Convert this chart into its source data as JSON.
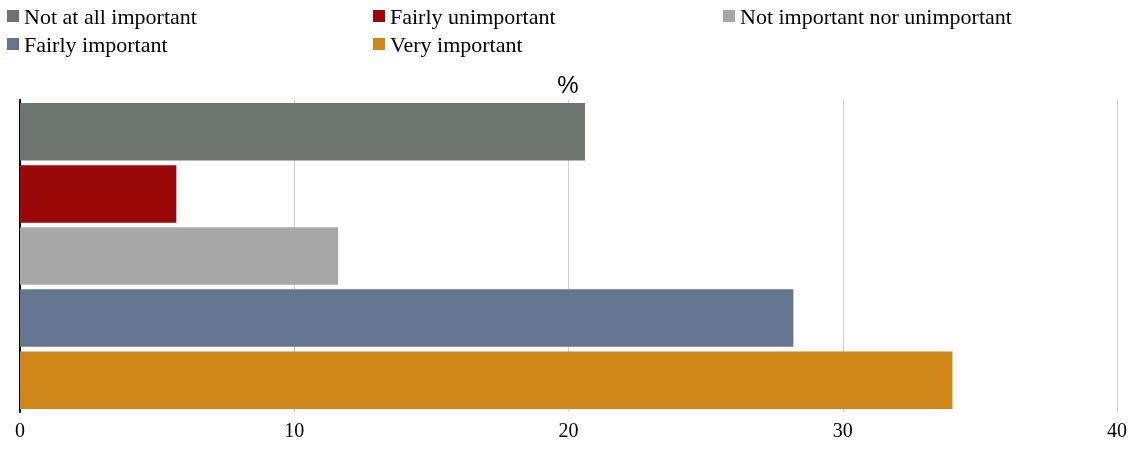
{
  "chart_data": {
    "type": "bar",
    "orientation": "horizontal",
    "xlabel": "%",
    "categories": [
      null
    ],
    "series": [
      {
        "name": "Not at all important",
        "color": "#6e7571",
        "values": [
          20.6
        ]
      },
      {
        "name": "Fairly unimportant",
        "color": "#9b0808",
        "values": [
          5.7
        ]
      },
      {
        "name": "Not important nor unimportant",
        "color": "#a8a8a8",
        "values": [
          11.6
        ]
      },
      {
        "name": "Fairly important",
        "color": "#66758f",
        "values": [
          28.2
        ]
      },
      {
        "name": "Very important",
        "color": "#d08719",
        "values": [
          34.0
        ]
      }
    ],
    "xlim": [
      0,
      40
    ],
    "xticks": [
      0,
      10,
      20,
      30,
      40
    ],
    "grid": "x",
    "legend": "top",
    "tick_labels": "x"
  }
}
